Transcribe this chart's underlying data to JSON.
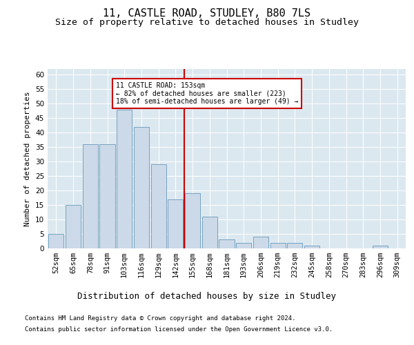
{
  "title1": "11, CASTLE ROAD, STUDLEY, B80 7LS",
  "title2": "Size of property relative to detached houses in Studley",
  "xlabel": "Distribution of detached houses by size in Studley",
  "ylabel": "Number of detached properties",
  "categories": [
    "52sqm",
    "65sqm",
    "78sqm",
    "91sqm",
    "103sqm",
    "116sqm",
    "129sqm",
    "142sqm",
    "155sqm",
    "168sqm",
    "181sqm",
    "193sqm",
    "206sqm",
    "219sqm",
    "232sqm",
    "245sqm",
    "258sqm",
    "270sqm",
    "283sqm",
    "296sqm",
    "309sqm"
  ],
  "values": [
    5,
    15,
    36,
    36,
    48,
    42,
    29,
    17,
    19,
    11,
    3,
    2,
    4,
    2,
    2,
    1,
    0,
    0,
    0,
    1,
    0
  ],
  "bar_color": "#ccd9e8",
  "bar_edge_color": "#6699bb",
  "vline_color": "#cc0000",
  "annotation_text": "11 CASTLE ROAD: 153sqm\n← 82% of detached houses are smaller (223)\n18% of semi-detached houses are larger (49) →",
  "ylim": [
    0,
    62
  ],
  "yticks": [
    0,
    5,
    10,
    15,
    20,
    25,
    30,
    35,
    40,
    45,
    50,
    55,
    60
  ],
  "plot_bg_color": "#dce8f0",
  "footer1": "Contains HM Land Registry data © Crown copyright and database right 2024.",
  "footer2": "Contains public sector information licensed under the Open Government Licence v3.0.",
  "annotation_rect_color": "#cc0000",
  "title1_fontsize": 11,
  "title2_fontsize": 9.5,
  "xlabel_fontsize": 9,
  "ylabel_fontsize": 8,
  "tick_fontsize": 7.5,
  "footer_fontsize": 6.5
}
